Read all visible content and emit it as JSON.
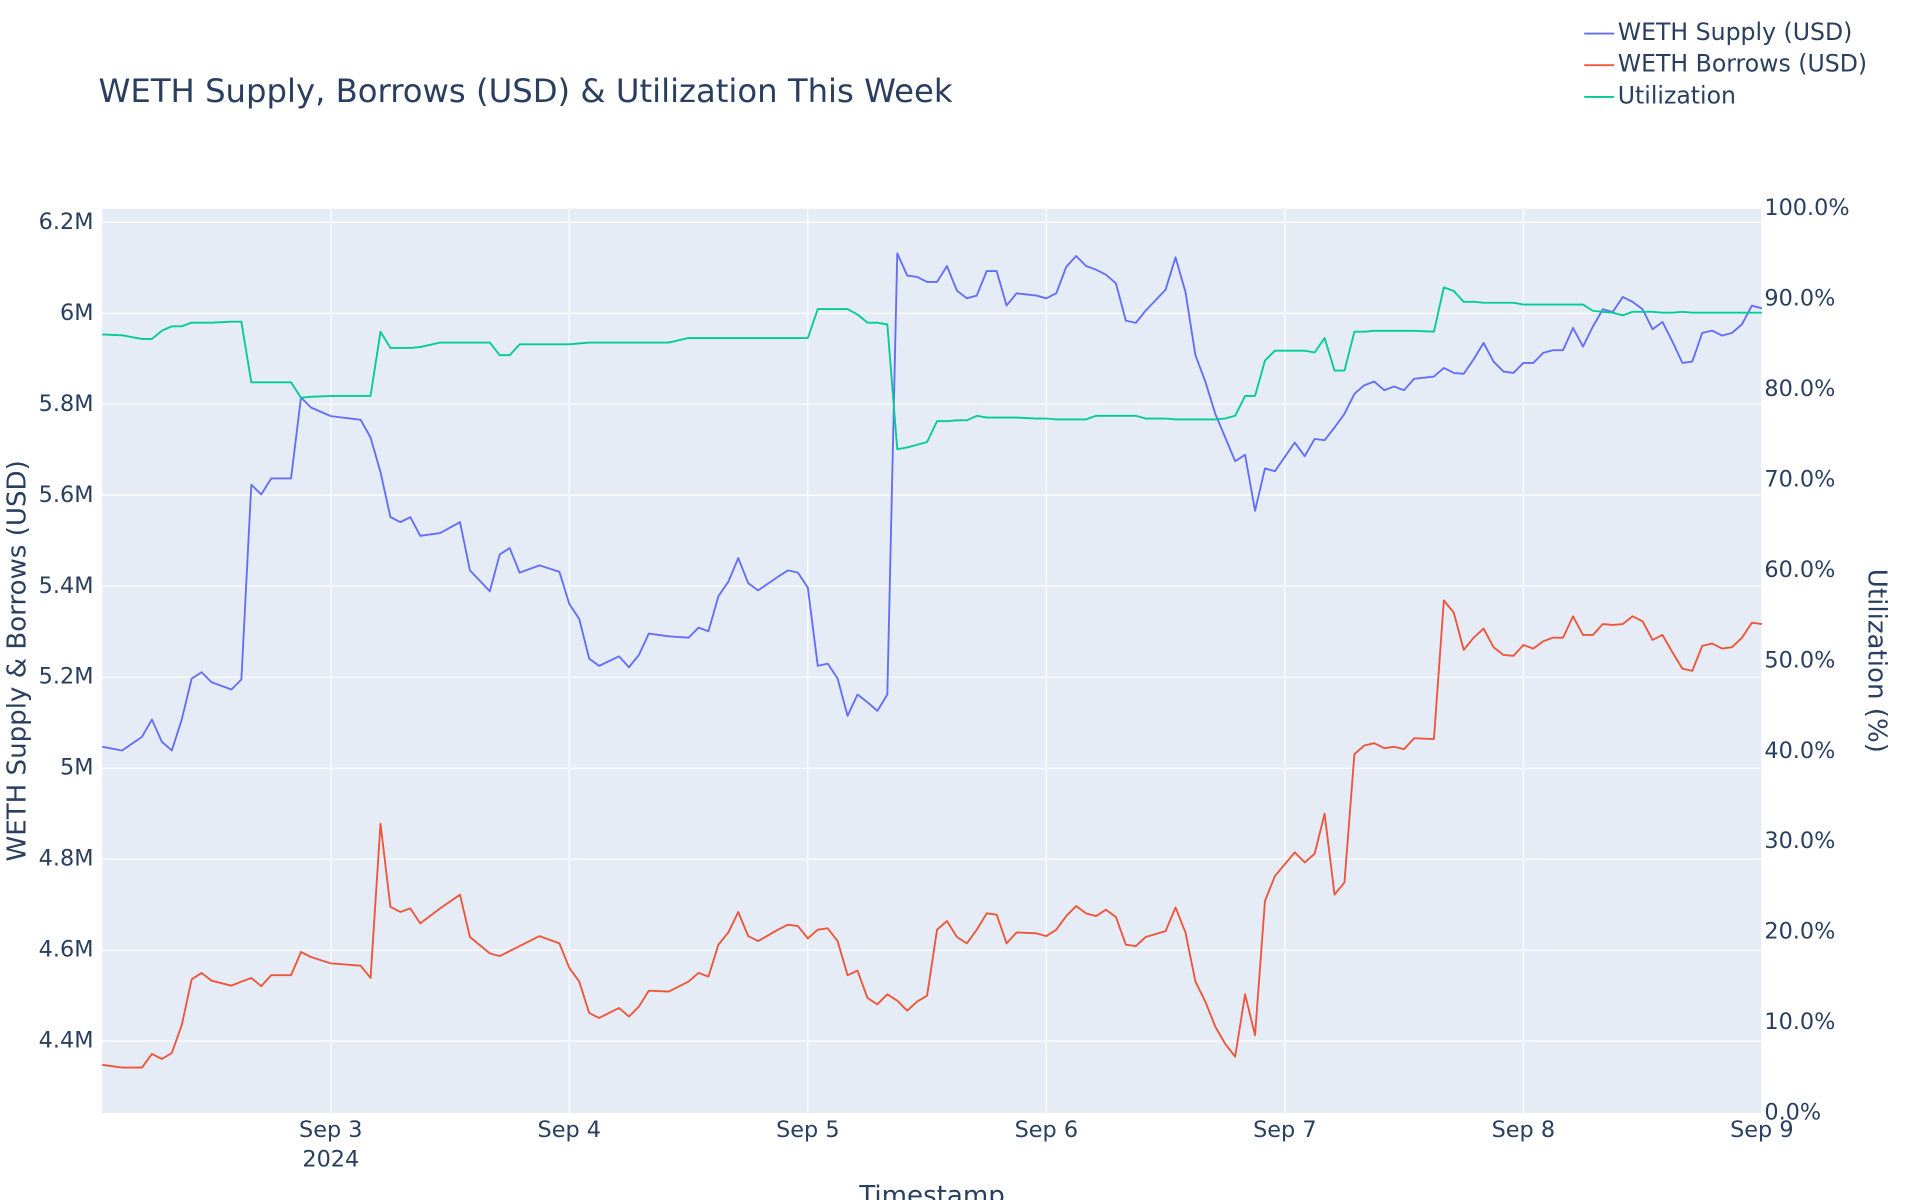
{
  "chart_data": {
    "type": "line",
    "title": "WETH Supply, Borrows (USD) & Utilization This Week",
    "x_label": "Timestamp",
    "y_label": "WETH Supply & Borrows (USD)",
    "y2_label": "Utilization (%)",
    "legend": "top-right",
    "grid": true,
    "xlim": [
      "2024-09-02 01:00",
      "2024-09-09 00:00"
    ],
    "xticks": [
      {
        "value": "2024-09-03",
        "label": "Sep 3"
      },
      {
        "value": "2024-09-04",
        "label": "Sep 4"
      },
      {
        "value": "2024-09-05",
        "label": "Sep 5"
      },
      {
        "value": "2024-09-06",
        "label": "Sep 6"
      },
      {
        "value": "2024-09-07",
        "label": "Sep 7"
      },
      {
        "value": "2024-09-08",
        "label": "Sep 8"
      },
      {
        "value": "2024-09-09",
        "label": "Sep 9"
      }
    ],
    "x_year_label": "2024",
    "ylim": [
      4242000,
      6230000
    ],
    "yticks": [
      {
        "value": 4400000,
        "label": "4.4M"
      },
      {
        "value": 4600000,
        "label": "4.6M"
      },
      {
        "value": 4800000,
        "label": "4.8M"
      },
      {
        "value": 5000000,
        "label": "5M"
      },
      {
        "value": 5200000,
        "label": "5.2M"
      },
      {
        "value": 5400000,
        "label": "5.4M"
      },
      {
        "value": 5600000,
        "label": "5.6M"
      },
      {
        "value": 5800000,
        "label": "5.8M"
      },
      {
        "value": 6000000,
        "label": "6M"
      },
      {
        "value": 6200000,
        "label": "6.2M"
      }
    ],
    "y2lim": [
      0,
      100
    ],
    "y2ticks": [
      {
        "value": 0,
        "label": "0.0%"
      },
      {
        "value": 10,
        "label": "10.0%"
      },
      {
        "value": 20,
        "label": "20.0%"
      },
      {
        "value": 30,
        "label": "30.0%"
      },
      {
        "value": 40,
        "label": "40.0%"
      },
      {
        "value": 50,
        "label": "50.0%"
      },
      {
        "value": 60,
        "label": "60.0%"
      },
      {
        "value": 70,
        "label": "70.0%"
      },
      {
        "value": 80,
        "label": "80.0%"
      },
      {
        "value": 90,
        "label": "90.0%"
      },
      {
        "value": 100,
        "label": "100.0%"
      }
    ],
    "x": [
      "2024-09-02 01:00",
      "2024-09-02 03:00",
      "2024-09-02 05:00",
      "2024-09-02 06:00",
      "2024-09-02 07:00",
      "2024-09-02 08:00",
      "2024-09-02 09:00",
      "2024-09-02 10:00",
      "2024-09-02 11:00",
      "2024-09-02 12:00",
      "2024-09-02 14:00",
      "2024-09-02 15:00",
      "2024-09-02 16:00",
      "2024-09-02 17:00",
      "2024-09-02 18:00",
      "2024-09-02 20:00",
      "2024-09-02 21:00",
      "2024-09-02 22:00",
      "2024-09-03 00:00",
      "2024-09-03 03:00",
      "2024-09-03 04:00",
      "2024-09-03 05:00",
      "2024-09-03 06:00",
      "2024-09-03 07:00",
      "2024-09-03 08:00",
      "2024-09-03 09:00",
      "2024-09-03 11:00",
      "2024-09-03 13:00",
      "2024-09-03 14:00",
      "2024-09-03 16:00",
      "2024-09-03 17:00",
      "2024-09-03 18:00",
      "2024-09-03 19:00",
      "2024-09-03 21:00",
      "2024-09-03 23:00",
      "2024-09-04 00:00",
      "2024-09-04 01:00",
      "2024-09-04 02:00",
      "2024-09-04 03:00",
      "2024-09-04 05:00",
      "2024-09-04 06:00",
      "2024-09-04 07:00",
      "2024-09-04 08:00",
      "2024-09-04 10:00",
      "2024-09-04 12:00",
      "2024-09-04 13:00",
      "2024-09-04 14:00",
      "2024-09-04 15:00",
      "2024-09-04 16:00",
      "2024-09-04 17:00",
      "2024-09-04 18:00",
      "2024-09-04 19:00",
      "2024-09-04 21:00",
      "2024-09-04 22:00",
      "2024-09-04 23:00",
      "2024-09-05 00:00",
      "2024-09-05 01:00",
      "2024-09-05 02:00",
      "2024-09-05 03:00",
      "2024-09-05 04:00",
      "2024-09-05 05:00",
      "2024-09-05 06:00",
      "2024-09-05 07:00",
      "2024-09-05 08:00",
      "2024-09-05 09:00",
      "2024-09-05 10:00",
      "2024-09-05 11:00",
      "2024-09-05 12:00",
      "2024-09-05 13:00",
      "2024-09-05 14:00",
      "2024-09-05 15:00",
      "2024-09-05 16:00",
      "2024-09-05 17:00",
      "2024-09-05 18:00",
      "2024-09-05 19:00",
      "2024-09-05 20:00",
      "2024-09-05 21:00",
      "2024-09-05 23:00",
      "2024-09-06 00:00",
      "2024-09-06 01:00",
      "2024-09-06 02:00",
      "2024-09-06 03:00",
      "2024-09-06 04:00",
      "2024-09-06 05:00",
      "2024-09-06 06:00",
      "2024-09-06 07:00",
      "2024-09-06 08:00",
      "2024-09-06 09:00",
      "2024-09-06 10:00",
      "2024-09-06 12:00",
      "2024-09-06 13:00",
      "2024-09-06 14:00",
      "2024-09-06 15:00",
      "2024-09-06 16:00",
      "2024-09-06 17:00",
      "2024-09-06 18:00",
      "2024-09-06 19:00",
      "2024-09-06 20:00",
      "2024-09-06 21:00",
      "2024-09-06 22:00",
      "2024-09-06 23:00",
      "2024-09-07 01:00",
      "2024-09-07 02:00",
      "2024-09-07 03:00",
      "2024-09-07 04:00",
      "2024-09-07 05:00",
      "2024-09-07 06:00",
      "2024-09-07 07:00",
      "2024-09-07 08:00",
      "2024-09-07 09:00",
      "2024-09-07 10:00",
      "2024-09-07 11:00",
      "2024-09-07 12:00",
      "2024-09-07 13:00",
      "2024-09-07 15:00",
      "2024-09-07 16:00",
      "2024-09-07 17:00",
      "2024-09-07 18:00",
      "2024-09-07 19:00",
      "2024-09-07 20:00",
      "2024-09-07 21:00",
      "2024-09-07 22:00",
      "2024-09-07 23:00",
      "2024-09-08 00:00",
      "2024-09-08 01:00",
      "2024-09-08 02:00",
      "2024-09-08 03:00",
      "2024-09-08 04:00",
      "2024-09-08 05:00",
      "2024-09-08 06:00",
      "2024-09-08 07:00",
      "2024-09-08 08:00",
      "2024-09-08 09:00",
      "2024-09-08 10:00",
      "2024-09-08 11:00",
      "2024-09-08 12:00",
      "2024-09-08 13:00",
      "2024-09-08 14:00",
      "2024-09-08 15:00",
      "2024-09-08 16:00",
      "2024-09-08 17:00",
      "2024-09-08 18:00",
      "2024-09-08 19:00",
      "2024-09-08 20:00",
      "2024-09-08 21:00",
      "2024-09-08 22:00",
      "2024-09-08 23:00",
      "2024-09-09 00:00"
    ],
    "series": [
      {
        "name": "WETH Supply (USD)",
        "color": "#636efa",
        "axis": "y",
        "values": [
          5047000,
          5039000,
          5069000,
          5107000,
          5058000,
          5039000,
          5107000,
          5197000,
          5211000,
          5189000,
          5173000,
          5195000,
          5623000,
          5602000,
          5637000,
          5637000,
          5815000,
          5793000,
          5774000,
          5766000,
          5727000,
          5651000,
          5552000,
          5541000,
          5552000,
          5511000,
          5517000,
          5541000,
          5435000,
          5389000,
          5470000,
          5484000,
          5430000,
          5446000,
          5432000,
          5361000,
          5328000,
          5241000,
          5225000,
          5246000,
          5222000,
          5249000,
          5296000,
          5290000,
          5287000,
          5309000,
          5301000,
          5378000,
          5410000,
          5462000,
          5407000,
          5391000,
          5421000,
          5435000,
          5430000,
          5397000,
          5225000,
          5230000,
          5197000,
          5115000,
          5162000,
          5145000,
          5126000,
          5162000,
          6132000,
          6083000,
          6080000,
          6069000,
          6069000,
          6104000,
          6050000,
          6033000,
          6039000,
          6093000,
          6093000,
          6017000,
          6044000,
          6039000,
          6033000,
          6044000,
          6102000,
          6126000,
          6104000,
          6096000,
          6085000,
          6066000,
          5984000,
          5979000,
          6006000,
          6052000,
          6123000,
          6047000,
          5908000,
          5850000,
          5779000,
          5727000,
          5675000,
          5689000,
          5566000,
          5659000,
          5653000,
          5716000,
          5686000,
          5724000,
          5721000,
          5749000,
          5779000,
          5823000,
          5842000,
          5850000,
          5831000,
          5839000,
          5831000,
          5856000,
          5861000,
          5880000,
          5869000,
          5867000,
          5899000,
          5935000,
          5894000,
          5872000,
          5869000,
          5891000,
          5891000,
          5913000,
          5919000,
          5919000,
          5968000,
          5927000,
          5971000,
          6009000,
          6003000,
          6036000,
          6025000,
          6009000,
          5965000,
          5981000,
          5938000,
          5891000,
          5894000,
          5957000,
          5962000,
          5951000,
          5957000,
          5976000,
          6017000,
          6011000
        ]
      },
      {
        "name": "WETH Borrows (USD)",
        "color": "#EF553B",
        "axis": "y",
        "values": [
          4348000,
          4342000,
          4342000,
          4372000,
          4361000,
          4374000,
          4435000,
          4536000,
          4550000,
          4533000,
          4522000,
          4531000,
          4539000,
          4521000,
          4545000,
          4545000,
          4596000,
          4585000,
          4571000,
          4566000,
          4539000,
          4878000,
          4695000,
          4684000,
          4692000,
          4659000,
          4692000,
          4722000,
          4629000,
          4593000,
          4587000,
          4598000,
          4609000,
          4631000,
          4615000,
          4561000,
          4531000,
          4462000,
          4451000,
          4473000,
          4454000,
          4476000,
          4511000,
          4509000,
          4531000,
          4550000,
          4542000,
          4612000,
          4639000,
          4684000,
          4631000,
          4620000,
          4645000,
          4656000,
          4653000,
          4626000,
          4645000,
          4648000,
          4620000,
          4545000,
          4555000,
          4495000,
          4481000,
          4503000,
          4489000,
          4467000,
          4487000,
          4500000,
          4645000,
          4664000,
          4629000,
          4615000,
          4645000,
          4681000,
          4678000,
          4615000,
          4639000,
          4637000,
          4631000,
          4645000,
          4675000,
          4697000,
          4681000,
          4675000,
          4689000,
          4673000,
          4612000,
          4609000,
          4629000,
          4642000,
          4694000,
          4639000,
          4531000,
          4487000,
          4432000,
          4394000,
          4366000,
          4503000,
          4413000,
          4708000,
          4763000,
          4815000,
          4793000,
          4812000,
          4900000,
          4722000,
          4749000,
          5031000,
          5050000,
          5055000,
          5044000,
          5047000,
          5042000,
          5066000,
          5064000,
          5369000,
          5342000,
          5260000,
          5287000,
          5307000,
          5266000,
          5249000,
          5247000,
          5271000,
          5263000,
          5279000,
          5287000,
          5287000,
          5334000,
          5293000,
          5293000,
          5317000,
          5315000,
          5317000,
          5334000,
          5323000,
          5282000,
          5293000,
          5255000,
          5219000,
          5214000,
          5269000,
          5274000,
          5263000,
          5266000,
          5287000,
          5320000,
          5317000
        ]
      },
      {
        "name": "Utilization",
        "color": "#00cc96",
        "axis": "y2",
        "values": [
          86.1,
          86.0,
          85.6,
          85.6,
          86.5,
          87.0,
          87.0,
          87.4,
          87.4,
          87.4,
          87.5,
          87.5,
          80.8,
          80.8,
          80.8,
          80.8,
          79.1,
          79.2,
          79.3,
          79.3,
          79.3,
          86.4,
          84.6,
          84.6,
          84.6,
          84.7,
          85.2,
          85.2,
          85.2,
          85.2,
          83.8,
          83.8,
          85.0,
          85.0,
          85.0,
          85.0,
          85.1,
          85.2,
          85.2,
          85.2,
          85.2,
          85.2,
          85.2,
          85.2,
          85.7,
          85.7,
          85.7,
          85.7,
          85.7,
          85.7,
          85.7,
          85.7,
          85.7,
          85.7,
          85.7,
          85.7,
          88.9,
          88.9,
          88.9,
          88.9,
          88.3,
          87.4,
          87.4,
          87.2,
          73.4,
          73.6,
          73.9,
          74.2,
          76.5,
          76.5,
          76.6,
          76.6,
          77.1,
          76.9,
          76.9,
          76.9,
          76.9,
          76.8,
          76.8,
          76.7,
          76.7,
          76.7,
          76.7,
          77.1,
          77.1,
          77.1,
          77.1,
          77.1,
          76.8,
          76.8,
          76.7,
          76.7,
          76.7,
          76.7,
          76.7,
          76.8,
          77.1,
          79.3,
          79.3,
          83.2,
          84.3,
          84.3,
          84.3,
          84.1,
          85.7,
          82.1,
          82.1,
          86.4,
          86.4,
          86.5,
          86.5,
          86.5,
          86.5,
          86.5,
          86.4,
          91.3,
          90.9,
          89.7,
          89.7,
          89.6,
          89.6,
          89.6,
          89.6,
          89.4,
          89.4,
          89.4,
          89.4,
          89.4,
          89.4,
          89.4,
          88.7,
          88.6,
          88.5,
          88.2,
          88.6,
          88.6,
          88.6,
          88.5,
          88.5,
          88.6,
          88.5,
          88.5,
          88.5,
          88.5,
          88.5,
          88.5,
          88.5,
          88.5
        ]
      }
    ]
  }
}
